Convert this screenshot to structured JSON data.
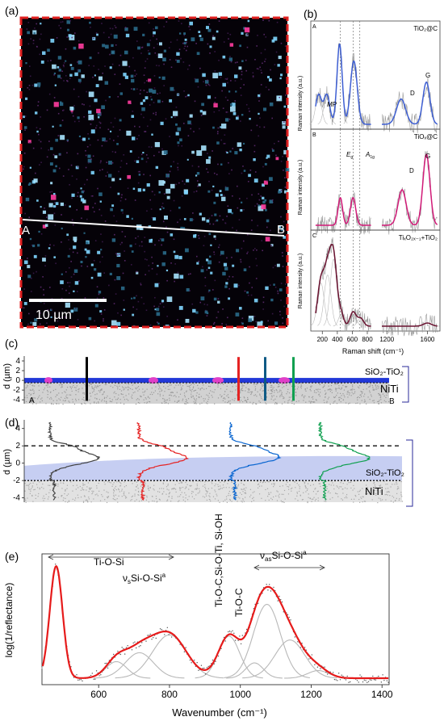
{
  "panel_labels": [
    "(a)",
    "(b)",
    "(c)",
    "(d)",
    "(e)"
  ],
  "map": {
    "scale_bar": "10 µm",
    "point_a": "A",
    "point_b": "B",
    "colors": {
      "border": "#e02020",
      "particle_cyan": "#7fd6ff",
      "particle_pink": "#ff3da0",
      "background": "#050208"
    }
  },
  "chart_data": [
    {
      "type": "line",
      "panel": "(b)",
      "ylabel": "Raman intensity (a.u.)",
      "xlabel": "Raman shift (cm⁻¹)",
      "x_ticks": [
        "200",
        "400",
        "600",
        "800",
        "1200",
        "1600"
      ],
      "xlim": [
        100,
        1750
      ],
      "axis_break": [
        850,
        1150
      ],
      "reference_lines": [
        440,
        610,
        700
      ],
      "subplots": [
        {
          "id": "A",
          "title": "TiO₂@C",
          "annotations": [
            "MP",
            "D",
            "G"
          ],
          "color": "#3e5fd3",
          "fit_peaks": [
            {
              "center": 150,
              "width": 40,
              "height": 0.35
            },
            {
              "center": 260,
              "width": 40,
              "height": 0.35
            },
            {
              "center": 430,
              "width": 35,
              "height": 0.95
            },
            {
              "center": 620,
              "width": 45,
              "height": 0.75
            },
            {
              "center": 1340,
              "width": 45,
              "height": 0.3
            },
            {
              "center": 1590,
              "width": 35,
              "height": 0.5
            }
          ]
        },
        {
          "id": "B",
          "title": "TiOₓ@C",
          "annotations": [
            "E_g",
            "A_1g",
            "D",
            "G"
          ],
          "color": "#d21a78",
          "fit_peaks": [
            {
              "center": 440,
              "width": 30,
              "height": 0.35
            },
            {
              "center": 610,
              "width": 35,
              "height": 0.35
            },
            {
              "center": 1350,
              "width": 40,
              "height": 0.45
            },
            {
              "center": 1590,
              "width": 35,
              "height": 0.9
            }
          ]
        },
        {
          "id": "C",
          "title": "TiₓO₂ₓ₋₁+TiO₂",
          "annotations": [],
          "color": "#6a1230",
          "fit_peaks": [
            {
              "center": 180,
              "width": 45,
              "height": 0.55
            },
            {
              "center": 270,
              "width": 45,
              "height": 0.65
            },
            {
              "center": 350,
              "width": 45,
              "height": 0.85
            },
            {
              "center": 450,
              "width": 35,
              "height": 0.15
            },
            {
              "center": 610,
              "width": 40,
              "height": 0.18
            },
            {
              "center": 710,
              "width": 40,
              "height": 0.1
            },
            {
              "center": 1600,
              "width": 40,
              "height": 0.04
            }
          ]
        }
      ]
    },
    {
      "type": "area",
      "panel": "(c)",
      "ylabel": "d (µm)",
      "y_ticks": [
        "4",
        "2",
        "0",
        "-2",
        "-4"
      ],
      "ylim": [
        -5,
        5
      ],
      "layers": [
        {
          "name": "SiO₂-TiO₂",
          "from": -0.5,
          "to": 0.5,
          "color": "#2238d8"
        },
        {
          "name": "NiTi",
          "from": -5,
          "to": -0.5,
          "color": "#cfcfcf"
        }
      ],
      "end_labels": [
        "A",
        "B"
      ],
      "profile_markers": [
        {
          "color": "#000000"
        },
        {
          "color": "#e52222"
        },
        {
          "color": "#0e5a85"
        },
        {
          "color": "#10a050"
        }
      ]
    },
    {
      "type": "line",
      "panel": "(d)",
      "ylabel": "d (µm)",
      "y_ticks": [
        "4",
        "2",
        "0",
        "-2",
        "-4"
      ],
      "ylim": [
        -4.5,
        5
      ],
      "interfaces": [
        2,
        -2
      ],
      "layers": [
        {
          "name": "SiO₂-TiO₂",
          "from": -2,
          "to": 0.8
        },
        {
          "name": "NiTi",
          "from": -4.5,
          "to": -2
        }
      ],
      "profiles": [
        {
          "color": "#444444",
          "peak_depth": 0.6
        },
        {
          "color": "#e52222",
          "peak_depth": 0.6
        },
        {
          "color": "#0a66d0",
          "peak_depth": 0.7
        },
        {
          "color": "#10a050",
          "peak_depth": 0.6
        }
      ]
    },
    {
      "type": "line",
      "panel": "(e)",
      "xlabel": "Wavenumber (cm⁻¹)",
      "ylabel": "log(1/reflectance)",
      "x_ticks": [
        600,
        800,
        1000,
        1200,
        1400
      ],
      "xlim": [
        440,
        1420
      ],
      "annotations": [
        "Ti-O-Si",
        "ν_sSi-O-Si^a",
        "Ti-O-C,Si-O-Ti, Si-OH",
        "Ti-O-C",
        "ν_asSi-O-Si^a"
      ],
      "components": [
        {
          "center": 480,
          "width": 18,
          "height": 0.88
        },
        {
          "center": 650,
          "width": 30,
          "height": 0.13
        },
        {
          "center": 715,
          "width": 40,
          "height": 0.2
        },
        {
          "center": 800,
          "width": 48,
          "height": 0.34
        },
        {
          "center": 968,
          "width": 30,
          "height": 0.33
        },
        {
          "center": 1040,
          "width": 25,
          "height": 0.12
        },
        {
          "center": 1075,
          "width": 38,
          "height": 0.58
        },
        {
          "center": 1140,
          "width": 42,
          "height": 0.3
        },
        {
          "center": 1220,
          "width": 30,
          "height": 0.06
        }
      ],
      "fit_color": "#e61b1b",
      "component_color": "#b8b8b8"
    }
  ]
}
